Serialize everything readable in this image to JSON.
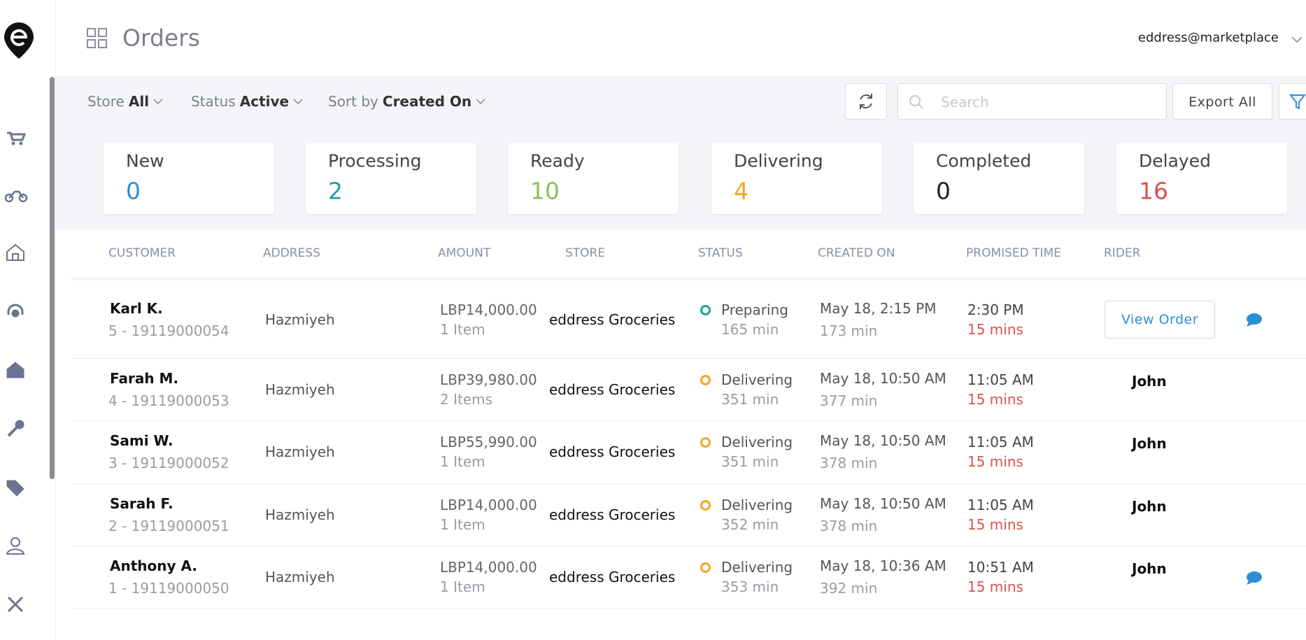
{
  "header": {
    "title": "Orders",
    "user": "eddress@marketplace"
  },
  "toolbar": {
    "filters": [
      {
        "label": "Store",
        "value": "All"
      },
      {
        "label": "Status",
        "value": "Active"
      },
      {
        "label": "Sort by",
        "value": "Created On"
      }
    ],
    "search_placeholder": "Search",
    "export": "Export All"
  },
  "summary": [
    {
      "label": "New",
      "count": 0,
      "color": "#2b8fd6"
    },
    {
      "label": "Processing",
      "count": 2,
      "color": "#1aa39a"
    },
    {
      "label": "Ready",
      "count": 10,
      "color": "#8cc152"
    },
    {
      "label": "Delivering",
      "count": 4,
      "color": "#f5a623"
    },
    {
      "label": "Completed",
      "count": 0,
      "color": "#222222"
    },
    {
      "label": "Delayed",
      "count": 16,
      "color": "#d9534f"
    }
  ],
  "table": {
    "columns": [
      "CUSTOMER",
      "ADDRESS",
      "AMOUNT",
      "STORE",
      "STATUS",
      "CREATED ON",
      "PROMISED TIME",
      "RIDER"
    ],
    "rows": [
      {
        "customer": "Karl K.",
        "order": "5 - 19119000054",
        "address": "Hazmiyeh",
        "amount": "LBP14,000.00",
        "items": "1 Item",
        "store": "eddress Groceries",
        "status": "Preparing",
        "status_color": "#1aa39a",
        "status_time": "165 min",
        "created": "May 18, 2:15 PM",
        "age": "173 min",
        "promised": "2:30 PM",
        "delay": "15 mins",
        "action": "View Order"
      },
      {
        "customer": "Farah M.",
        "order": "4 - 19119000053",
        "address": "Hazmiyeh",
        "amount": "LBP39,980.00",
        "items": "2 Items",
        "store": "eddress Groceries",
        "status": "Delivering",
        "status_color": "#f5a623",
        "status_time": "351 min",
        "created": "May 18, 10:50 AM",
        "age": "377 min",
        "promised": "11:05 AM",
        "delay": "15 mins",
        "rider": "John"
      },
      {
        "customer": "Sami W.",
        "order": "3 - 19119000052",
        "address": "Hazmiyeh",
        "amount": "LBP55,990.00",
        "items": "1 Item",
        "store": "eddress Groceries",
        "status": "Delivering",
        "status_color": "#f5a623",
        "status_time": "351 min",
        "created": "May 18, 10:50 AM",
        "age": "378 min",
        "promised": "11:05 AM",
        "delay": "15 mins",
        "rider": "John"
      },
      {
        "customer": "Sarah F.",
        "order": "2 - 19119000051",
        "address": "Hazmiyeh",
        "amount": "LBP14,000.00",
        "items": "1 Item",
        "store": "eddress Groceries",
        "status": "Delivering",
        "status_color": "#f5a623",
        "status_time": "352 min",
        "created": "May 18, 10:50 AM",
        "age": "378 min",
        "promised": "11:05 AM",
        "delay": "15 mins",
        "rider": "John"
      },
      {
        "customer": "Anthony A.",
        "order": "1 - 19119000050",
        "address": "Hazmiyeh",
        "amount": "LBP14,000.00",
        "items": "1 Item",
        "store": "eddress Groceries",
        "status": "Delivering",
        "status_color": "#f5a623",
        "status_time": "353 min",
        "created": "May 18, 10:36 AM",
        "age": "392 min",
        "promised": "10:51 AM",
        "delay": "15 mins",
        "rider": "John"
      }
    ]
  }
}
